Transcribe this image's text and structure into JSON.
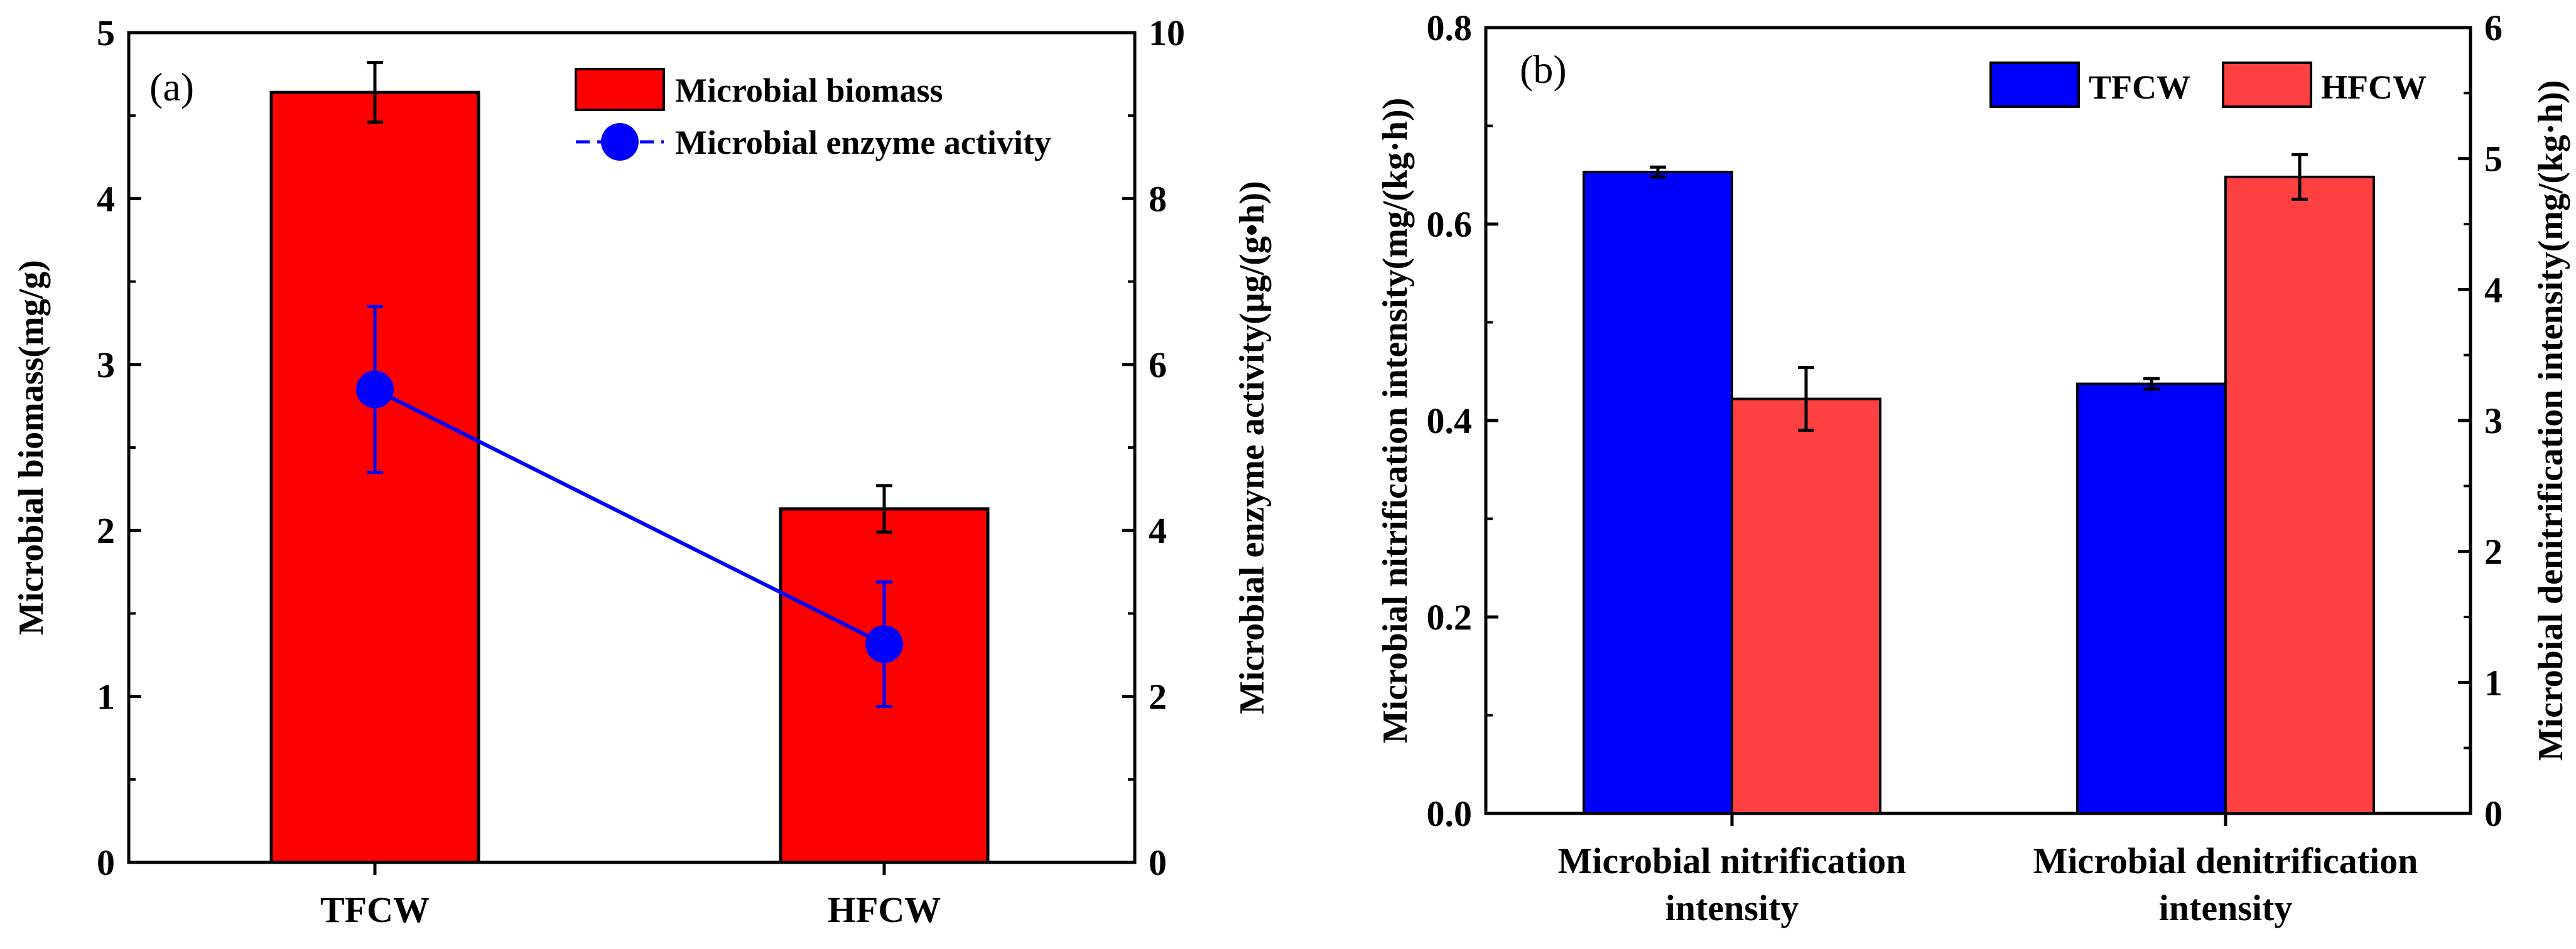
{
  "chart_data": [
    {
      "type": "bar",
      "panel_label": "(a)",
      "categories": [
        "TFCW",
        "HFCW"
      ],
      "series": [
        {
          "name": "Microbial biomass",
          "values": [
            4.64,
            2.13
          ],
          "errors": [
            0.18,
            0.14
          ],
          "axis": "left",
          "color": "#ff0000"
        },
        {
          "name": "Microbial enzyme activity",
          "values": [
            5.7,
            2.63
          ],
          "errors": [
            1.0,
            0.75
          ],
          "axis": "right",
          "kind": "line",
          "color": "#0000ff"
        }
      ],
      "ylabel": "Microbial biomass(mg/g)",
      "ylabel_right": "Microbial enzyme activity(μg/(g•h))",
      "ylim": [
        0,
        5
      ],
      "ylim_right": [
        0,
        10
      ],
      "yticks": [
        "0",
        "1",
        "2",
        "3",
        "4",
        "5"
      ],
      "yticks_right": [
        "0",
        "2",
        "4",
        "6",
        "8",
        "10"
      ],
      "legend_position": "top-right"
    },
    {
      "type": "bar",
      "panel_label": "(b)",
      "categories": [
        "Microbial nitrification intensity",
        "Microbial denitrification intensity"
      ],
      "category_lines": [
        [
          "Microbial nitrification",
          "intensity"
        ],
        [
          "Microbial denitrification",
          "intensity"
        ]
      ],
      "series": [
        {
          "name": "TFCW",
          "values": [
            0.653,
            3.28
          ],
          "errors": [
            0.005,
            0.04
          ],
          "color": "#0000ff"
        },
        {
          "name": "HFCW",
          "values": [
            0.422,
            4.86
          ],
          "errors": [
            0.032,
            0.17
          ],
          "color": "#ff4040"
        }
      ],
      "value_axes": [
        "left",
        "right"
      ],
      "ylabel": "Microbial nitrification intensity(mg/(kg·h))",
      "ylabel_right": "Microbial denitrification intensity(mg/(kg·h))",
      "ylim": [
        0,
        0.8
      ],
      "ylim_right": [
        0,
        6
      ],
      "yticks": [
        "0.0",
        "0.2",
        "0.4",
        "0.6",
        "0.8"
      ],
      "yticks_right": [
        "0",
        "1",
        "2",
        "3",
        "4",
        "5",
        "6"
      ],
      "legend_position": "top-right"
    }
  ]
}
